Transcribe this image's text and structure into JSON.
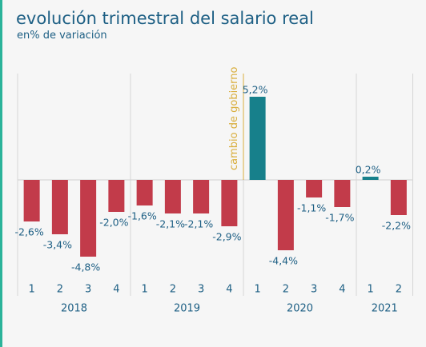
{
  "chart_data": {
    "type": "bar",
    "title": "evolución trimestral del salario real",
    "subtitle": "en% de variación",
    "annotation": "cambio de gobierno",
    "colors": {
      "negative": "#c23b4a",
      "positive": "#17808b"
    },
    "groups": [
      {
        "label": "2018",
        "categories": [
          "1",
          "2",
          "3",
          "4"
        ],
        "values": [
          -2.6,
          -3.4,
          -4.8,
          -2.0
        ],
        "value_labels": [
          "-2,6%",
          "-3,4%",
          "-4,8%",
          "-2,0%"
        ]
      },
      {
        "label": "2019",
        "categories": [
          "1",
          "2",
          "3",
          "4"
        ],
        "values": [
          -1.6,
          -2.1,
          -2.1,
          -2.9
        ],
        "value_labels": [
          "-1,6%",
          "-2,1%",
          "-2,1%",
          "-2,9%"
        ]
      },
      {
        "label": "2020",
        "categories": [
          "1",
          "2",
          "3",
          "4"
        ],
        "values": [
          5.2,
          -4.4,
          -1.1,
          -1.7
        ],
        "value_labels": [
          "5,2%",
          "-4,4%",
          "-1,1%",
          "-1,7%"
        ]
      },
      {
        "label": "2021",
        "categories": [
          "1",
          "2"
        ],
        "values": [
          0.2,
          -2.2
        ],
        "value_labels": [
          "0,2%",
          "-2,2%"
        ]
      }
    ]
  }
}
